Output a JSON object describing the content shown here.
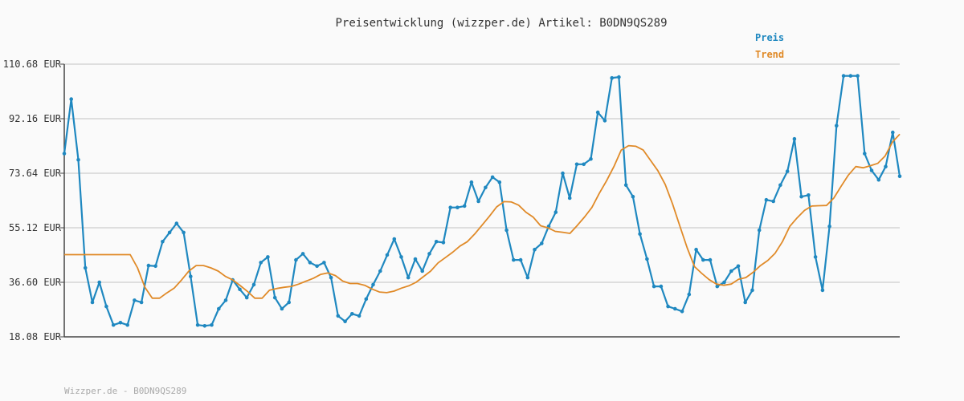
{
  "chart_data": {
    "type": "line",
    "title": "Preisentwicklung (wizzper.de) Artikel: B0DN9QS289",
    "footer": "Wizzper.de - B0DN9QS289",
    "ylim": [
      18.08,
      110.68
    ],
    "y_ticks": [
      "110.68 EUR",
      "92.16 EUR",
      "73.64 EUR",
      "55.12 EUR",
      "36.60 EUR",
      "18.08 EUR"
    ],
    "y_tick_values": [
      110.68,
      92.16,
      73.64,
      55.12,
      36.6,
      18.08
    ],
    "grid": true,
    "legend_position": "top-right",
    "series": [
      {
        "name": "Preis",
        "color": "#1f88c0",
        "values": [
          80.3,
          98.8,
          78.2,
          41.5,
          29.8,
          36.6,
          28.4,
          22.1,
          22.9,
          22.1,
          30.5,
          29.8,
          42.3,
          42.1,
          50.4,
          53.5,
          56.6,
          53.5,
          38.6,
          22.1,
          21.8,
          22.1,
          27.6,
          30.5,
          37.4,
          34.2,
          31.4,
          35.8,
          43.3,
          45.2,
          31.4,
          27.6,
          29.8,
          44.2,
          46.3,
          43.3,
          42.1,
          43.3,
          38.2,
          25.2,
          23.3,
          25.9,
          25.2,
          30.9,
          35.8,
          40.4,
          45.9,
          51.3,
          45.2,
          38.2,
          44.5,
          40.4,
          46.3,
          50.4,
          50.1,
          62.0,
          62.0,
          62.5,
          70.6,
          64.1,
          68.8,
          72.3,
          70.6,
          54.3,
          44.2,
          44.2,
          38.2,
          47.7,
          49.8,
          55.6,
          60.4,
          73.6,
          65.2,
          76.7,
          76.7,
          78.5,
          94.3,
          91.5,
          106.0,
          106.3,
          69.6,
          65.7,
          53.0,
          44.5,
          35.2,
          35.2,
          28.4,
          27.6,
          26.7,
          32.5,
          47.7,
          44.2,
          44.2,
          35.2,
          36.6,
          40.4,
          42.1,
          29.8,
          33.9,
          54.3,
          64.6,
          64.1,
          69.6,
          74.3,
          85.3,
          65.7,
          66.2,
          45.2,
          33.9,
          55.6,
          89.8,
          106.7,
          106.7,
          106.7,
          80.3,
          74.6,
          71.4,
          75.9,
          87.5,
          72.6
        ]
      },
      {
        "name": "Trend",
        "color": "#e08a28",
        "values": [
          46.0,
          46.0,
          46.0,
          46.0,
          46.0,
          46.0,
          46.0,
          46.0,
          46.0,
          46.0,
          41.5,
          34.9,
          31.2,
          31.2,
          33.0,
          34.6,
          37.4,
          40.4,
          42.3,
          42.3,
          41.5,
          40.4,
          38.6,
          37.4,
          35.5,
          33.5,
          31.2,
          31.2,
          33.9,
          34.5,
          34.9,
          35.2,
          36.0,
          37.0,
          38.0,
          39.3,
          39.8,
          38.9,
          37.0,
          36.2,
          36.2,
          35.6,
          34.3,
          33.3,
          33.1,
          33.6,
          34.6,
          35.4,
          36.6,
          38.5,
          40.4,
          43.2,
          45.0,
          46.8,
          48.9,
          50.4,
          53.0,
          56.0,
          59.0,
          62.2,
          64.0,
          63.9,
          62.8,
          60.4,
          58.7,
          55.8,
          55.1,
          53.9,
          53.6,
          53.2,
          55.9,
          58.8,
          62.0,
          66.8,
          71.1,
          75.9,
          81.5,
          83.0,
          82.8,
          81.5,
          78.0,
          74.5,
          69.8,
          63.2,
          55.7,
          48.3,
          41.9,
          39.6,
          37.5,
          36.0,
          35.6,
          36.0,
          37.6,
          38.2,
          40.0,
          42.3,
          44.0,
          46.5,
          50.4,
          55.6,
          58.5,
          61.0,
          62.5,
          62.6,
          62.7,
          65.2,
          69.2,
          73.0,
          75.9,
          75.5,
          76.2,
          77.0,
          79.5,
          84.2,
          86.9
        ]
      }
    ]
  }
}
